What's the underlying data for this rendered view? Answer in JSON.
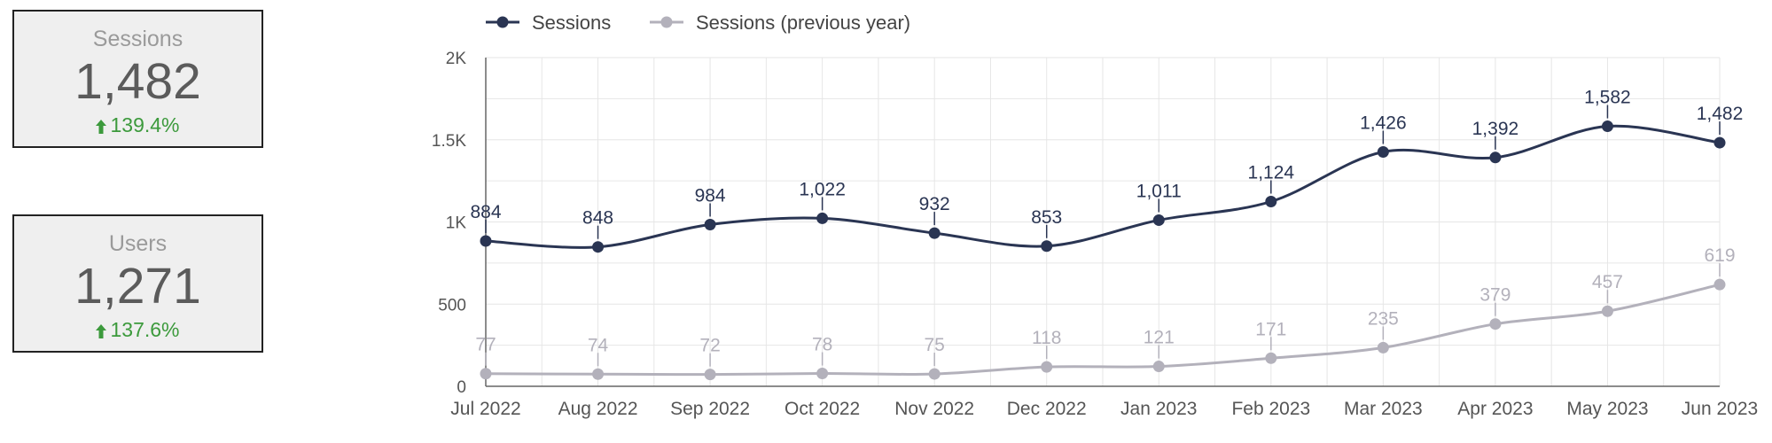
{
  "kpis": {
    "sessions": {
      "label": "Sessions",
      "value": "1,482",
      "delta": "139.4%"
    },
    "users": {
      "label": "Users",
      "value": "1,271",
      "delta": "137.6%"
    }
  },
  "colors": {
    "primary": "#2a3553",
    "previous": "#b3b1bb",
    "positive": "#3c9a3c",
    "grid": "#e6e6e6",
    "axis": "#555555"
  },
  "chart_data": {
    "type": "line",
    "categories": [
      "Jul 2022",
      "Aug 2022",
      "Sep 2022",
      "Oct 2022",
      "Nov 2022",
      "Dec 2022",
      "Jan 2023",
      "Feb 2023",
      "Mar 2023",
      "Apr 2023",
      "May 2023",
      "Jun 2023"
    ],
    "series": [
      {
        "name": "Sessions",
        "values": [
          884,
          848,
          984,
          1022,
          932,
          853,
          1011,
          1124,
          1426,
          1392,
          1582,
          1482
        ],
        "labels": [
          "884",
          "848",
          "984",
          "1,022",
          "932",
          "853",
          "1,011",
          "1,124",
          "1,426",
          "1,392",
          "1,582",
          "1,482"
        ]
      },
      {
        "name": "Sessions (previous year)",
        "values": [
          77,
          74,
          72,
          78,
          75,
          118,
          121,
          171,
          235,
          379,
          457,
          619
        ],
        "labels": [
          "77",
          "74",
          "72",
          "78",
          "75",
          "118",
          "121",
          "171",
          "235",
          "379",
          "457",
          "619"
        ]
      }
    ],
    "ylim": [
      0,
      2000
    ],
    "yticks": [
      0,
      500,
      1000,
      1500,
      2000
    ],
    "ytick_labels": [
      "0",
      "500",
      "1K",
      "1.5K",
      "2K"
    ],
    "grid": true,
    "legend": "top-left"
  }
}
